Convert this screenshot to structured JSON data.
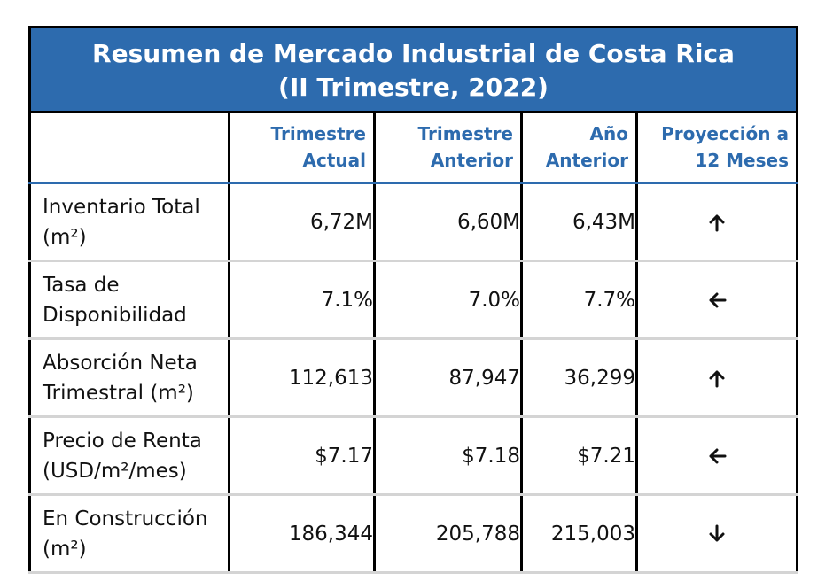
{
  "title": {
    "line1": "Resumen de Mercado Industrial de Costa Rica",
    "line2": "(II Trimestre, 2022)"
  },
  "columns": [
    {
      "line1": "",
      "line2": ""
    },
    {
      "line1": "Trimestre",
      "line2": "Actual"
    },
    {
      "line1": "Trimestre",
      "line2": "Anterior"
    },
    {
      "line1": "Año",
      "line2": "Anterior"
    },
    {
      "line1": "Proyección a",
      "line2": "12 Meses"
    }
  ],
  "rows": [
    {
      "label1": "Inventario Total",
      "label2": "(m²)",
      "actual": "6,72M",
      "anterior": "6,60M",
      "ano_anterior": "6,43M",
      "trend": "up"
    },
    {
      "label1": "Tasa de",
      "label2": "Disponibilidad",
      "actual": "7.1%",
      "anterior": "7.0%",
      "ano_anterior": "7.7%",
      "trend": "left"
    },
    {
      "label1": "Absorción Neta",
      "label2": "Trimestral (m²)",
      "actual": "112,613",
      "anterior": "87,947",
      "ano_anterior": "36,299",
      "trend": "up"
    },
    {
      "label1": "Precio de Renta",
      "label2": "(USD/m²/mes)",
      "actual": "$7.17",
      "anterior": "$7.18",
      "ano_anterior": "$7.21",
      "trend": "left"
    },
    {
      "label1": "En Construcción",
      "label2": "(m²)",
      "actual": "186,344",
      "anterior": "205,788",
      "ano_anterior": "215,003",
      "trend": "down"
    }
  ],
  "colors": {
    "accent": "#2d6bae",
    "border": "#000000",
    "row_divider": "#d4d4d4"
  }
}
